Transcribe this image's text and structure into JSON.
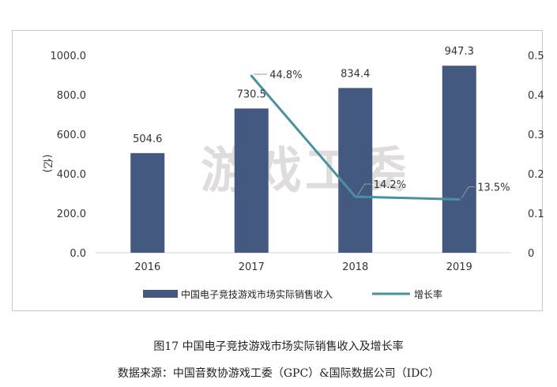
{
  "chart_data": {
    "type": "bar",
    "categories": [
      "2016",
      "2017",
      "2018",
      "2019"
    ],
    "series": [
      {
        "name": "中国电子竞技游戏市场实际销售收入",
        "type": "bar",
        "axis": "left",
        "values": [
          504.6,
          730.5,
          834.4,
          947.3
        ],
        "labels": [
          "504.6",
          "730.5",
          "834.4",
          "947.3"
        ]
      },
      {
        "name": "增长率",
        "type": "line",
        "axis": "right",
        "values": [
          null,
          0.448,
          0.142,
          0.135
        ],
        "labels": [
          "",
          "44.8%",
          "14.2%",
          "13.5%"
        ]
      }
    ],
    "ylabel": "(亿)",
    "ylim": [
      0,
      1000
    ],
    "y2lim": [
      0,
      0.5
    ],
    "yticks": [
      "0.0",
      "200.0",
      "400.0",
      "600.0",
      "800.0",
      "1000.0"
    ],
    "y2ticks": [
      "0",
      "0.1",
      "0.2",
      "0.3",
      "0.4",
      "0.5"
    ],
    "grid": false,
    "legend_position": "bottom",
    "watermark": "游戏工委",
    "colors": {
      "bar": "#44597f",
      "line": "#4a90a0"
    }
  },
  "caption": "图17 中国电子竞技游戏市场实际销售收入及增长率",
  "source": "数据来源：中国音数协游戏工委（GPC）&国际数据公司（IDC）"
}
